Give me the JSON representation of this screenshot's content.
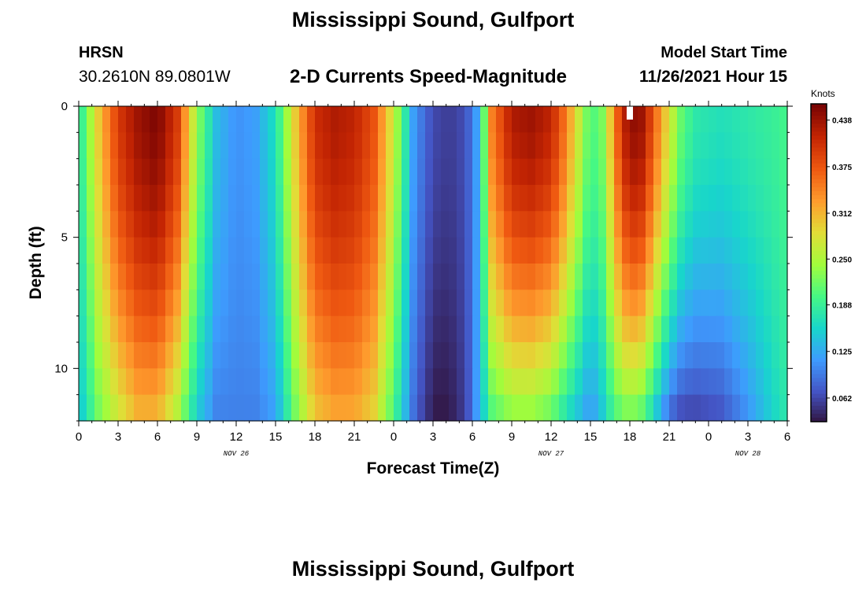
{
  "page": {
    "title": "Mississippi Sound, Gulfport",
    "station": "HRSN",
    "coordinates": "30.2610N  89.0801W",
    "subtitle": "2-D Currents Speed-Magnitude",
    "model_start_label": "Model Start Time",
    "model_start_value": "11/26/2021 Hour 15",
    "footer_title": "Mississippi Sound, Gulfport"
  },
  "chart_data": {
    "type": "heatmap",
    "title": "2-D Currents Speed-Magnitude",
    "xlabel": "Forecast Time(Z)",
    "ylabel": "Depth (ft)",
    "colorbar_title": "Knots",
    "x_ticks": [
      "0",
      "3",
      "6",
      "9",
      "12",
      "15",
      "18",
      "21",
      "0",
      "3",
      "6",
      "9",
      "12",
      "15",
      "18",
      "21",
      "0",
      "3",
      "6"
    ],
    "x_range_hours": [
      0,
      54
    ],
    "date_labels": [
      {
        "text": "NOV 26",
        "hour": 12
      },
      {
        "text": "NOV 27",
        "hour": 36
      },
      {
        "text": "NOV 28",
        "hour": 51
      }
    ],
    "y_ticks": [
      0,
      5,
      10
    ],
    "y_range_ft": [
      0,
      12
    ],
    "y_inverted": true,
    "color_range": [
      0.03,
      0.46
    ],
    "colorbar_ticks": [
      "0.438",
      "0.375",
      "0.312",
      "0.250",
      "0.188",
      "0.125",
      "0.062"
    ],
    "colorbar_tick_values": [
      0.438,
      0.375,
      0.312,
      0.25,
      0.188,
      0.125,
      0.062
    ],
    "colormap": [
      "#30123b",
      "#4454c4",
      "#3e9bfe",
      "#18d6cb",
      "#46f884",
      "#a2fc3c",
      "#e1dd37",
      "#fe9b2d",
      "#ef5911",
      "#c42503",
      "#7a0403"
    ],
    "surface_speed_knots": [
      [
        0,
        0.17
      ],
      [
        1.5,
        0.3
      ],
      [
        3,
        0.4
      ],
      [
        4.5,
        0.44
      ],
      [
        6,
        0.46
      ],
      [
        7.5,
        0.4
      ],
      [
        9,
        0.24
      ],
      [
        10.5,
        0.14
      ],
      [
        12,
        0.11
      ],
      [
        13.5,
        0.12
      ],
      [
        15,
        0.17
      ],
      [
        16.5,
        0.3
      ],
      [
        18,
        0.41
      ],
      [
        19.5,
        0.43
      ],
      [
        21,
        0.42
      ],
      [
        22.5,
        0.38
      ],
      [
        24,
        0.27
      ],
      [
        25.5,
        0.12
      ],
      [
        26.5,
        0.08
      ],
      [
        27.5,
        0.06
      ],
      [
        28.5,
        0.06
      ],
      [
        29.5,
        0.07
      ],
      [
        30.5,
        0.13
      ],
      [
        31.5,
        0.35
      ],
      [
        33,
        0.43
      ],
      [
        34.5,
        0.44
      ],
      [
        36,
        0.42
      ],
      [
        37,
        0.36
      ],
      [
        38,
        0.28
      ],
      [
        39,
        0.2
      ],
      [
        40,
        0.23
      ],
      [
        40.7,
        0.33
      ],
      [
        41.3,
        0.4
      ],
      [
        42,
        0.45
      ],
      [
        43,
        0.44
      ],
      [
        44,
        0.36
      ],
      [
        45,
        0.28
      ],
      [
        46,
        0.21
      ],
      [
        47,
        0.18
      ],
      [
        49,
        0.17
      ],
      [
        51,
        0.18
      ],
      [
        53,
        0.19
      ],
      [
        54,
        0.2
      ]
    ],
    "bottom_speed_knots": [
      [
        0,
        0.14
      ],
      [
        1.5,
        0.22
      ],
      [
        3,
        0.27
      ],
      [
        4.5,
        0.31
      ],
      [
        6,
        0.31
      ],
      [
        7.5,
        0.25
      ],
      [
        9,
        0.15
      ],
      [
        10.5,
        0.1
      ],
      [
        12,
        0.1
      ],
      [
        13.5,
        0.1
      ],
      [
        15,
        0.12
      ],
      [
        16.5,
        0.22
      ],
      [
        18,
        0.3
      ],
      [
        19.5,
        0.32
      ],
      [
        21,
        0.32
      ],
      [
        22.5,
        0.29
      ],
      [
        24,
        0.2
      ],
      [
        25.5,
        0.09
      ],
      [
        26.5,
        0.05
      ],
      [
        27.5,
        0.03
      ],
      [
        28.5,
        0.04
      ],
      [
        29.5,
        0.06
      ],
      [
        30.5,
        0.13
      ],
      [
        31.5,
        0.2
      ],
      [
        33,
        0.23
      ],
      [
        34.5,
        0.23
      ],
      [
        36,
        0.21
      ],
      [
        37,
        0.17
      ],
      [
        38,
        0.14
      ],
      [
        39,
        0.11
      ],
      [
        40,
        0.15
      ],
      [
        40.7,
        0.19
      ],
      [
        41.3,
        0.21
      ],
      [
        42,
        0.22
      ],
      [
        43,
        0.2
      ],
      [
        44,
        0.14
      ],
      [
        45,
        0.08
      ],
      [
        46,
        0.06
      ],
      [
        47,
        0.06
      ],
      [
        49,
        0.07
      ],
      [
        51,
        0.11
      ],
      [
        53,
        0.16
      ],
      [
        54,
        0.18
      ]
    ],
    "missing_cell": {
      "hour": 42,
      "depth_ft": 0.25
    }
  }
}
